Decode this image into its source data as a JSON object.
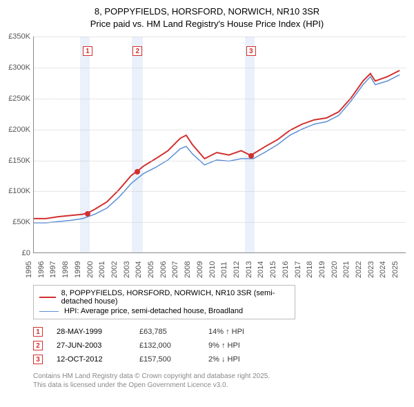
{
  "title": {
    "line1": "8, POPPYFIELDS, HORSFORD, NORWICH, NR10 3SR",
    "line2": "Price paid vs. HM Land Registry's House Price Index (HPI)"
  },
  "chart": {
    "type": "line",
    "x_start_year": 1995,
    "x_end_year": 2025.5,
    "y_min": 0,
    "y_max": 350000,
    "y_tick_step": 50000,
    "y_tick_labels": [
      "£0",
      "£50K",
      "£100K",
      "£150K",
      "£200K",
      "£250K",
      "£300K",
      "£350K"
    ],
    "x_tick_years": [
      1995,
      1996,
      1997,
      1998,
      1999,
      2000,
      2001,
      2002,
      2003,
      2004,
      2005,
      2006,
      2007,
      2008,
      2009,
      2010,
      2011,
      2012,
      2013,
      2014,
      2015,
      2016,
      2017,
      2018,
      2019,
      2020,
      2021,
      2022,
      2023,
      2024,
      2025
    ],
    "grid_color": "#cccccc",
    "background": "#ffffff",
    "band_color": "#eaf1fa",
    "bands": [
      {
        "start": 1998.8,
        "end": 1999.6
      },
      {
        "start": 2003.0,
        "end": 2003.9
      },
      {
        "start": 2012.3,
        "end": 2013.1
      }
    ],
    "series": [
      {
        "name": "price_paid",
        "label": "8, POPPYFIELDS, HORSFORD, NORWICH, NR10 3SR (semi-detached house)",
        "color": "#d22f2f",
        "line_width": 2,
        "points": [
          [
            1995,
            55000
          ],
          [
            1996,
            55000
          ],
          [
            1997,
            58000
          ],
          [
            1998,
            60000
          ],
          [
            1999,
            62000
          ],
          [
            1999.4,
            63785
          ],
          [
            2000,
            70000
          ],
          [
            2001,
            82000
          ],
          [
            2002,
            102000
          ],
          [
            2003,
            125000
          ],
          [
            2003.5,
            132000
          ],
          [
            2004,
            140000
          ],
          [
            2005,
            152000
          ],
          [
            2006,
            165000
          ],
          [
            2007,
            185000
          ],
          [
            2007.5,
            190000
          ],
          [
            2008,
            175000
          ],
          [
            2009,
            152000
          ],
          [
            2010,
            162000
          ],
          [
            2011,
            158000
          ],
          [
            2012,
            165000
          ],
          [
            2012.78,
            157500
          ],
          [
            2013,
            160000
          ],
          [
            2014,
            172000
          ],
          [
            2015,
            183000
          ],
          [
            2016,
            198000
          ],
          [
            2017,
            208000
          ],
          [
            2018,
            215000
          ],
          [
            2019,
            218000
          ],
          [
            2020,
            228000
          ],
          [
            2021,
            250000
          ],
          [
            2022,
            278000
          ],
          [
            2022.6,
            290000
          ],
          [
            2023,
            278000
          ],
          [
            2024,
            285000
          ],
          [
            2025,
            295000
          ]
        ]
      },
      {
        "name": "hpi",
        "label": "HPI: Average price, semi-detached house, Broadland",
        "color": "#5b8fd6",
        "line_width": 1.5,
        "points": [
          [
            1995,
            48000
          ],
          [
            1996,
            48000
          ],
          [
            1997,
            50000
          ],
          [
            1998,
            52000
          ],
          [
            1999,
            55000
          ],
          [
            2000,
            62000
          ],
          [
            2001,
            72000
          ],
          [
            2002,
            90000
          ],
          [
            2003,
            112000
          ],
          [
            2004,
            128000
          ],
          [
            2005,
            138000
          ],
          [
            2006,
            150000
          ],
          [
            2007,
            168000
          ],
          [
            2007.5,
            172000
          ],
          [
            2008,
            160000
          ],
          [
            2009,
            142000
          ],
          [
            2010,
            150000
          ],
          [
            2011,
            148000
          ],
          [
            2012,
            152000
          ],
          [
            2013,
            152000
          ],
          [
            2014,
            163000
          ],
          [
            2015,
            175000
          ],
          [
            2016,
            190000
          ],
          [
            2017,
            200000
          ],
          [
            2018,
            208000
          ],
          [
            2019,
            212000
          ],
          [
            2020,
            222000
          ],
          [
            2021,
            245000
          ],
          [
            2022,
            272000
          ],
          [
            2022.6,
            285000
          ],
          [
            2023,
            272000
          ],
          [
            2024,
            278000
          ],
          [
            2025,
            288000
          ]
        ]
      }
    ],
    "sale_markers": [
      {
        "n": "1",
        "year": 1999.4,
        "price": 63785
      },
      {
        "n": "2",
        "year": 2003.49,
        "price": 132000
      },
      {
        "n": "3",
        "year": 2012.78,
        "price": 157500
      }
    ]
  },
  "legend": {
    "items": [
      {
        "color": "#d22f2f",
        "width": 2,
        "label_path": "chart.series.0.label"
      },
      {
        "color": "#5b8fd6",
        "width": 1.5,
        "label_path": "chart.series.1.label"
      }
    ]
  },
  "transactions": [
    {
      "n": "1",
      "date": "28-MAY-1999",
      "price": "£63,785",
      "delta": "14% ↑ HPI"
    },
    {
      "n": "2",
      "date": "27-JUN-2003",
      "price": "£132,000",
      "delta": "9% ↑ HPI"
    },
    {
      "n": "3",
      "date": "12-OCT-2012",
      "price": "£157,500",
      "delta": "2% ↓ HPI"
    }
  ],
  "footnote": {
    "line1": "Contains HM Land Registry data © Crown copyright and database right 2025.",
    "line2": "This data is licensed under the Open Government Licence v3.0."
  }
}
